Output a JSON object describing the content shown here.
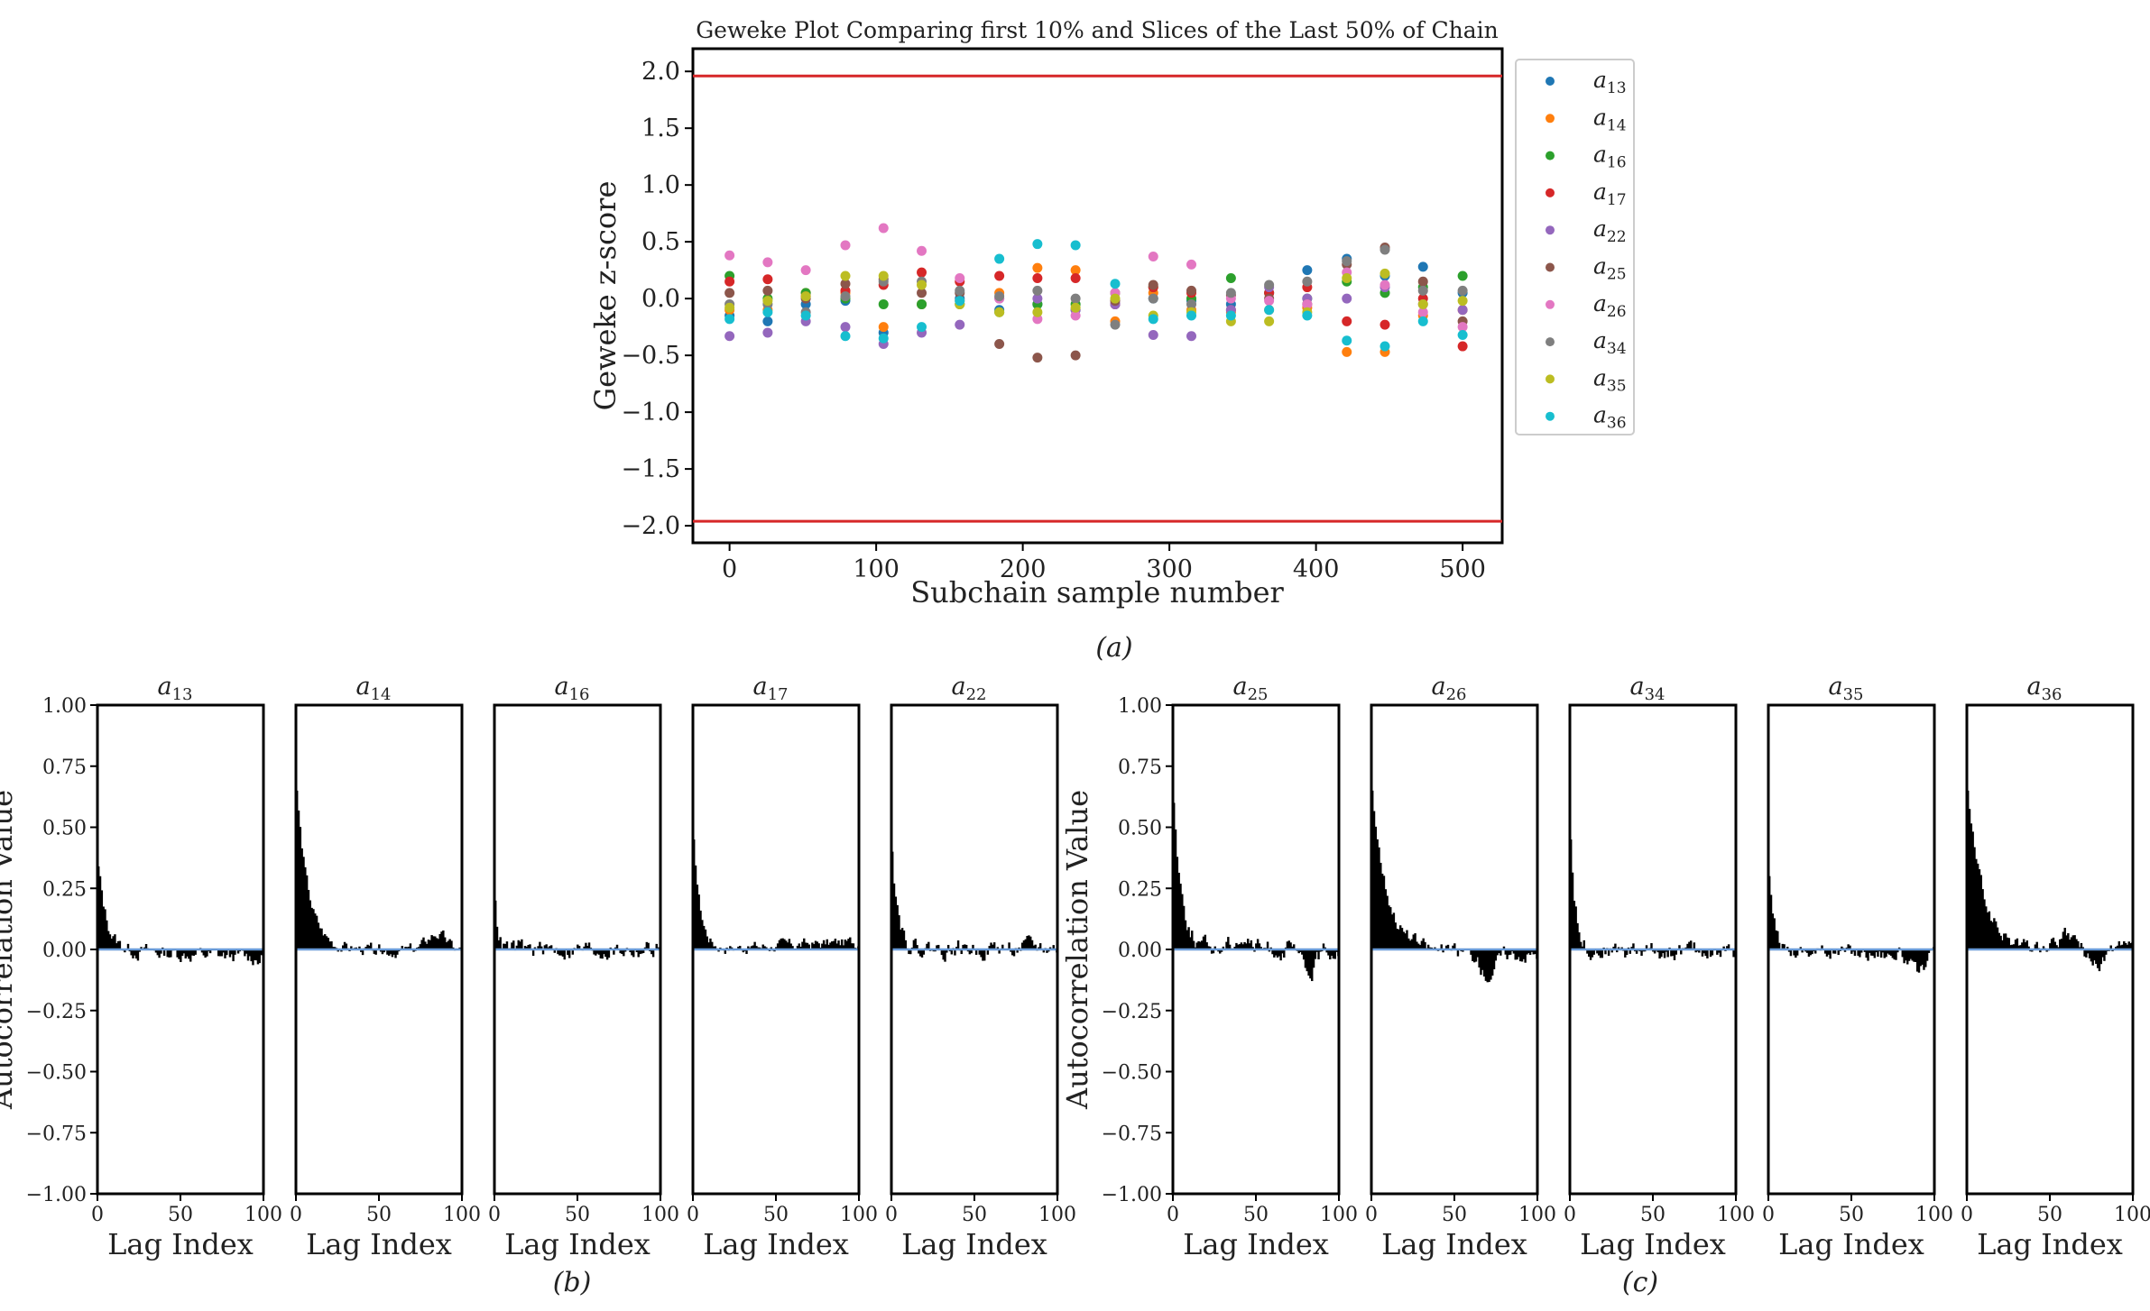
{
  "chart_data": [
    {
      "type": "scatter",
      "panel": "a",
      "title": "Geweke Plot Comparing first 10% and Slices of the Last 50% of Chain",
      "xlabel": "Subchain sample number",
      "ylabel": "Geweke z-score",
      "xlim": [
        -25,
        527
      ],
      "ylim": [
        -2.15,
        2.2
      ],
      "xticks": [
        0,
        100,
        200,
        300,
        400,
        500
      ],
      "yticks": [
        2.0,
        1.5,
        1.0,
        0.5,
        0.0,
        -0.5,
        -1.0,
        -1.5,
        -2.0
      ],
      "ytick_labels": [
        "2.0",
        "1.5",
        "1.0",
        "0.5",
        "0.0",
        "−0.5",
        "−1.0",
        "−1.5",
        "−2.0"
      ],
      "hlines": [
        1.96,
        -1.96
      ],
      "hline_color": "#d62728",
      "legend_position": "outside-right",
      "x": [
        0,
        26,
        52,
        79,
        105,
        131,
        157,
        184,
        210,
        236,
        263,
        289,
        315,
        342,
        368,
        394,
        421,
        447,
        473,
        500
      ],
      "series": [
        {
          "name": "a",
          "sub": "13",
          "color": "#1f77b4",
          "values": [
            -0.15,
            -0.2,
            -0.05,
            -0.02,
            -0.3,
            -0.05,
            0.0,
            -0.1,
            -0.05,
            -0.1,
            -0.05,
            0.0,
            -0.02,
            -0.05,
            0.05,
            0.25,
            0.35,
            0.2,
            0.28,
            0.05
          ]
        },
        {
          "name": "a",
          "sub": "14",
          "color": "#ff7f0e",
          "values": [
            -0.1,
            -0.1,
            0.05,
            0.05,
            -0.25,
            -0.05,
            -0.02,
            0.05,
            0.27,
            0.25,
            -0.2,
            0.05,
            -0.1,
            -0.12,
            -0.1,
            -0.08,
            -0.47,
            -0.47,
            -0.15,
            -0.1
          ]
        },
        {
          "name": "a",
          "sub": "16",
          "color": "#2ca02c",
          "values": [
            0.2,
            0.0,
            0.05,
            0.0,
            -0.05,
            -0.05,
            -0.05,
            -0.12,
            -0.05,
            -0.05,
            0.05,
            0.1,
            0.0,
            0.18,
            0.05,
            0.0,
            0.15,
            0.05,
            0.1,
            0.2
          ]
        },
        {
          "name": "a",
          "sub": "17",
          "color": "#d62728",
          "values": [
            0.15,
            0.17,
            0.02,
            0.07,
            0.12,
            0.23,
            0.15,
            0.2,
            0.18,
            0.18,
            -0.05,
            0.1,
            0.05,
            -0.1,
            0.05,
            0.1,
            -0.2,
            -0.23,
            0.0,
            -0.42
          ]
        },
        {
          "name": "a",
          "sub": "22",
          "color": "#9467bd",
          "values": [
            -0.33,
            -0.3,
            -0.2,
            -0.25,
            -0.4,
            -0.3,
            -0.23,
            0.0,
            0.0,
            -0.1,
            -0.05,
            -0.32,
            -0.33,
            -0.1,
            0.1,
            0.0,
            0.0,
            0.1,
            -0.05,
            -0.1
          ]
        },
        {
          "name": "a",
          "sub": "25",
          "color": "#8c564b",
          "values": [
            0.05,
            0.07,
            0.0,
            0.13,
            0.17,
            0.05,
            0.05,
            -0.4,
            -0.52,
            -0.5,
            -0.02,
            0.12,
            0.07,
            0.03,
            0.0,
            -0.05,
            0.3,
            0.45,
            0.15,
            -0.2
          ]
        },
        {
          "name": "a",
          "sub": "26",
          "color": "#e377c2",
          "values": [
            0.38,
            0.32,
            0.25,
            0.47,
            0.62,
            0.42,
            0.18,
            0.0,
            -0.18,
            -0.15,
            0.05,
            0.37,
            0.3,
            0.0,
            -0.02,
            -0.05,
            0.23,
            0.12,
            -0.12,
            -0.25
          ]
        },
        {
          "name": "a",
          "sub": "34",
          "color": "#7f7f7f",
          "values": [
            -0.05,
            -0.05,
            -0.12,
            0.02,
            0.15,
            0.15,
            0.07,
            0.02,
            0.07,
            0.0,
            -0.23,
            0.0,
            -0.05,
            0.05,
            0.12,
            0.15,
            0.33,
            0.43,
            0.07,
            0.07
          ]
        },
        {
          "name": "a",
          "sub": "35",
          "color": "#bcbd22",
          "values": [
            -0.08,
            -0.02,
            0.02,
            0.2,
            0.2,
            0.12,
            -0.05,
            -0.12,
            -0.12,
            -0.08,
            0.0,
            -0.15,
            -0.12,
            -0.2,
            -0.2,
            -0.12,
            0.18,
            0.22,
            -0.05,
            -0.02
          ]
        },
        {
          "name": "a",
          "sub": "36",
          "color": "#17becf",
          "values": [
            -0.18,
            -0.12,
            -0.15,
            -0.33,
            -0.35,
            -0.25,
            -0.02,
            0.35,
            0.48,
            0.47,
            0.13,
            -0.18,
            -0.15,
            -0.15,
            -0.1,
            -0.15,
            -0.37,
            -0.42,
            -0.2,
            -0.32
          ]
        }
      ]
    },
    {
      "type": "bar",
      "panel": "b",
      "ylabel": "Autocorrelation Value",
      "xlabel": "Lag Index",
      "xlim": [
        0,
        100
      ],
      "ylim": [
        -1.0,
        1.0
      ],
      "xticks": [
        0,
        50,
        100
      ],
      "yticks": [
        1.0,
        0.75,
        0.5,
        0.25,
        0.0,
        -0.25,
        -0.5,
        -0.75,
        -1.0
      ],
      "ytick_labels": [
        "1.00",
        "0.75",
        "0.50",
        "0.25",
        "0.00",
        "−0.25",
        "−0.50",
        "−0.75",
        "−1.00"
      ],
      "baseline_color": "#6a9bd8",
      "subplots": [
        {
          "name": "a",
          "sub": "13",
          "lag0": 0.34,
          "decay": 5,
          "amp": 0.025,
          "drift": -0.035,
          "seed": 13
        },
        {
          "name": "a",
          "sub": "14",
          "lag0": 0.65,
          "decay": 7,
          "amp": 0.02,
          "drift": -0.01,
          "bump": [
            85,
            0.07
          ],
          "seed": 14
        },
        {
          "name": "a",
          "sub": "16",
          "lag0": 0.2,
          "decay": 2,
          "amp": 0.03,
          "drift": 0.0,
          "seed": 16
        },
        {
          "name": "a",
          "sub": "17",
          "lag0": 0.45,
          "decay": 4,
          "amp": 0.02,
          "drift": 0.03,
          "seed": 17
        },
        {
          "name": "a",
          "sub": "22",
          "lag0": 0.4,
          "decay": 4,
          "amp": 0.03,
          "drift": 0.005,
          "seed": 22
        }
      ]
    },
    {
      "type": "bar",
      "panel": "c",
      "ylabel": "Autocorrelation Value",
      "xlabel": "Lag Index",
      "xlim": [
        0,
        100
      ],
      "ylim": [
        -1.0,
        1.0
      ],
      "xticks": [
        0,
        50,
        100
      ],
      "yticks": [
        1.0,
        0.75,
        0.5,
        0.25,
        0.0,
        -0.25,
        -0.5,
        -0.75,
        -1.0
      ],
      "ytick_labels": [
        "1.00",
        "0.75",
        "0.50",
        "0.25",
        "0.00",
        "−0.25",
        "−0.50",
        "−0.75",
        "−1.00"
      ],
      "baseline_color": "#6a9bd8",
      "subplots": [
        {
          "name": "a",
          "sub": "25",
          "lag0": 0.6,
          "decay": 5,
          "amp": 0.03,
          "drift": 0.0,
          "bump": [
            40,
            0.05
          ],
          "dip": [
            82,
            -0.1
          ],
          "seed": 25
        },
        {
          "name": "a",
          "sub": "26",
          "lag0": 0.65,
          "decay": 9,
          "amp": 0.025,
          "drift": -0.02,
          "dip": [
            70,
            -0.09
          ],
          "seed": 26
        },
        {
          "name": "a",
          "sub": "34",
          "lag0": 0.45,
          "decay": 3,
          "amp": 0.03,
          "drift": -0.01,
          "seed": 34
        },
        {
          "name": "a",
          "sub": "35",
          "lag0": 0.3,
          "decay": 3,
          "amp": 0.025,
          "drift": -0.02,
          "dip": [
            90,
            -0.08
          ],
          "seed": 35
        },
        {
          "name": "a",
          "sub": "36",
          "lag0": 0.65,
          "decay": 9,
          "amp": 0.025,
          "drift": 0.0,
          "bump": [
            60,
            0.05
          ],
          "dip": [
            78,
            -0.07
          ],
          "seed": 36
        }
      ]
    }
  ],
  "captions": {
    "a": "(a)",
    "b": "(b)",
    "c": "(c)"
  }
}
